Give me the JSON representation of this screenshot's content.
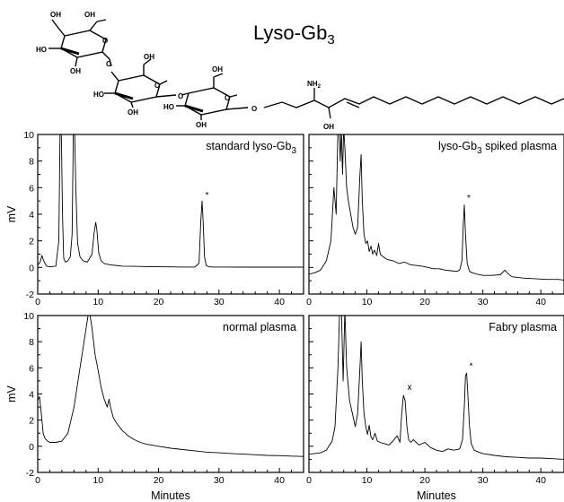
{
  "figure": {
    "compound_title": "Lyso-Gb",
    "compound_subscript": "3",
    "structure_labels": {
      "oh": "OH",
      "ho": "HO",
      "o": "O",
      "nh2": "NH",
      "nh2_sub": "2"
    }
  },
  "chart_data": [
    {
      "type": "line",
      "panel_label": "standard lyso-Gb",
      "panel_label_sub": "3",
      "xlabel": "",
      "ylabel": "mV",
      "xlim": [
        0,
        44
      ],
      "ylim": [
        -2,
        10
      ],
      "xticks": [
        0,
        10,
        20,
        30,
        40
      ],
      "yticks": [
        -2,
        0,
        2,
        4,
        6,
        8,
        10
      ],
      "peak_markers": [
        {
          "symbol": "*",
          "x": 27.3,
          "y": 5.0
        }
      ],
      "series": [
        {
          "x": [
            0,
            0.4,
            0.7,
            0.9,
            1.2,
            1.5,
            2.0,
            3.0,
            3.5,
            3.7,
            3.9,
            4.1,
            4.3,
            4.6,
            5.0,
            5.4,
            5.7,
            5.9,
            6.1,
            6.3,
            6.6,
            7.0,
            7.5,
            8.2,
            9.0,
            9.3,
            9.6,
            9.8,
            10.1,
            10.5,
            11.0,
            12.0,
            14.0,
            16.0,
            18.0,
            20.0,
            22.0,
            24.0,
            26.0,
            26.7,
            27.0,
            27.2,
            27.4,
            27.6,
            27.9,
            28.3,
            29.0,
            31.0,
            34.0,
            37.0,
            40.0,
            42.0,
            44.0
          ],
          "y": [
            0.2,
            0.4,
            0.9,
            0.6,
            0.3,
            0.1,
            0.05,
            0.1,
            2.0,
            10.5,
            10.5,
            4.0,
            0.7,
            0.4,
            0.5,
            0.8,
            2.5,
            10.5,
            10.5,
            6.0,
            1.8,
            0.8,
            0.5,
            0.4,
            1.0,
            2.5,
            3.4,
            2.8,
            1.1,
            0.5,
            0.3,
            0.2,
            0.1,
            0.08,
            0.06,
            0.05,
            0.04,
            0.03,
            0.03,
            0.3,
            3.5,
            5.0,
            3.3,
            0.8,
            0.15,
            0.05,
            0.03,
            0.03,
            0.02,
            0.02,
            0.02,
            0.02,
            0.02
          ]
        }
      ]
    },
    {
      "type": "line",
      "panel_label": "lyso-Gb",
      "panel_label_sub": "3",
      "panel_label_rest": " spiked plasma",
      "xlabel": "",
      "ylabel": "",
      "xlim": [
        0,
        44
      ],
      "ylim": [
        -2,
        10
      ],
      "xticks": [
        0,
        10,
        20,
        30,
        40
      ],
      "yticks": [
        -2,
        0,
        2,
        4,
        6,
        8,
        10
      ],
      "peak_markers": [
        {
          "symbol": "*",
          "x": 26.8,
          "y": 4.8
        }
      ],
      "series": [
        {
          "x": [
            0,
            1.0,
            2.0,
            3.0,
            3.8,
            4.3,
            4.7,
            5.0,
            5.2,
            5.4,
            5.6,
            5.8,
            6.0,
            6.2,
            6.5,
            6.8,
            7.2,
            7.6,
            8.0,
            8.4,
            8.8,
            9.0,
            9.2,
            9.5,
            9.8,
            10.1,
            10.4,
            10.7,
            11.0,
            11.3,
            11.7,
            12.0,
            12.3,
            12.8,
            13.5,
            14.5,
            15.5,
            16.5,
            17.5,
            18.5,
            19.5,
            20.5,
            21.5,
            22.5,
            23.5,
            24.5,
            25.5,
            26.0,
            26.4,
            26.6,
            26.8,
            27.0,
            27.3,
            27.7,
            28.2,
            29.0,
            30.0,
            31.5,
            33.0,
            33.8,
            34.2,
            35.0,
            37.0,
            39.0,
            41.0,
            43.0,
            44.0
          ],
          "y": [
            -0.5,
            -0.4,
            -0.2,
            0.5,
            2.0,
            6.0,
            4.0,
            10.5,
            10.5,
            8.0,
            10.5,
            7.0,
            10.5,
            9.0,
            6.0,
            5.0,
            4.0,
            3.0,
            2.5,
            3.0,
            7.0,
            8.5,
            5.0,
            2.5,
            1.8,
            2.0,
            1.2,
            1.6,
            1.0,
            1.3,
            0.9,
            1.8,
            1.0,
            0.8,
            0.6,
            0.5,
            0.3,
            0.4,
            0.2,
            0.15,
            0.1,
            0.0,
            -0.1,
            -0.1,
            -0.2,
            -0.25,
            -0.3,
            -0.2,
            0.5,
            3.0,
            4.7,
            2.5,
            0.3,
            -0.3,
            -0.4,
            -0.5,
            -0.6,
            -0.6,
            -0.55,
            -0.2,
            -0.4,
            -0.7,
            -0.8,
            -0.85,
            -0.9,
            -0.9,
            -0.95
          ]
        }
      ]
    },
    {
      "type": "line",
      "panel_label": "normal plasma",
      "xlabel": "Minutes",
      "ylabel": "mV",
      "xlim": [
        0,
        44
      ],
      "ylim": [
        -2,
        10
      ],
      "xticks": [
        0,
        10,
        20,
        30,
        40
      ],
      "yticks": [
        -2,
        0,
        2,
        4,
        6,
        8,
        10
      ],
      "peak_markers": [],
      "series": [
        {
          "x": [
            0,
            0.3,
            0.6,
            0.9,
            1.2,
            1.6,
            2.0,
            3.0,
            4.0,
            5.0,
            6.0,
            7.0,
            8.0,
            8.5,
            9.0,
            9.5,
            10.0,
            10.5,
            11.0,
            11.5,
            11.8,
            12.1,
            12.5,
            13.0,
            14.0,
            15.0,
            16.0,
            17.0,
            18.0,
            20.0,
            22.0,
            24.0,
            26.0,
            28.0,
            30.0,
            32.0,
            34.0,
            36.0,
            38.0,
            40.0,
            42.0,
            44.0
          ],
          "y": [
            3.5,
            3.8,
            2.5,
            1.0,
            0.6,
            0.4,
            0.3,
            0.3,
            0.4,
            1.0,
            3.0,
            6.0,
            9.0,
            10.5,
            9.0,
            7.0,
            5.8,
            4.5,
            3.6,
            3.0,
            3.6,
            2.9,
            2.2,
            1.8,
            1.2,
            0.8,
            0.5,
            0.3,
            0.15,
            0.0,
            -0.15,
            -0.25,
            -0.35,
            -0.45,
            -0.5,
            -0.55,
            -0.6,
            -0.65,
            -0.7,
            -0.72,
            -0.75,
            -0.78
          ]
        }
      ]
    },
    {
      "type": "line",
      "panel_label": "Fabry plasma",
      "xlabel": "Minutes",
      "ylabel": "",
      "xlim": [
        0,
        44
      ],
      "ylim": [
        -2,
        10
      ],
      "xticks": [
        0,
        10,
        20,
        30,
        40
      ],
      "yticks": [
        -2,
        0,
        2,
        4,
        6,
        8,
        10
      ],
      "peak_markers": [
        {
          "symbol": "x",
          "x": 16.5,
          "y": 4.1
        },
        {
          "symbol": "*",
          "x": 27.2,
          "y": 5.7
        }
      ],
      "series": [
        {
          "x": [
            0,
            1.0,
            2.0,
            3.0,
            4.0,
            4.5,
            5.0,
            5.3,
            5.6,
            5.9,
            6.2,
            6.5,
            7.0,
            7.5,
            8.0,
            8.4,
            8.8,
            9.0,
            9.2,
            9.5,
            9.8,
            10.1,
            10.4,
            10.7,
            11.0,
            11.4,
            11.8,
            12.3,
            13.0,
            13.8,
            14.5,
            15.2,
            15.7,
            16.0,
            16.3,
            16.6,
            16.9,
            17.2,
            17.6,
            18.0,
            19.0,
            20.0,
            21.0,
            22.0,
            23.0,
            24.0,
            25.0,
            26.0,
            26.5,
            26.8,
            27.0,
            27.2,
            27.4,
            27.7,
            28.0,
            28.5,
            29.0,
            30.0,
            32.0,
            34.0,
            36.0,
            38.0,
            40.0,
            42.0,
            44.0
          ],
          "y": [
            -0.6,
            -0.55,
            -0.5,
            -0.3,
            0.4,
            1.5,
            6.0,
            10.5,
            10.5,
            5.0,
            10.5,
            6.0,
            3.5,
            2.5,
            1.5,
            2.5,
            6.0,
            8.0,
            5.0,
            2.5,
            1.5,
            0.9,
            1.6,
            0.7,
            0.5,
            1.0,
            0.4,
            0.3,
            0.2,
            0.1,
            0.4,
            0.8,
            0.3,
            2.5,
            3.9,
            3.5,
            1.5,
            0.5,
            0.3,
            0.5,
            0.1,
            0.3,
            -0.1,
            -0.3,
            -0.4,
            -0.2,
            -0.3,
            -0.2,
            0.5,
            3.0,
            5.4,
            5.6,
            4.0,
            1.5,
            0.2,
            -0.3,
            -0.4,
            -0.55,
            -0.7,
            -0.8,
            -0.85,
            -0.9,
            -0.9,
            -0.95,
            -1.0
          ]
        }
      ]
    }
  ]
}
